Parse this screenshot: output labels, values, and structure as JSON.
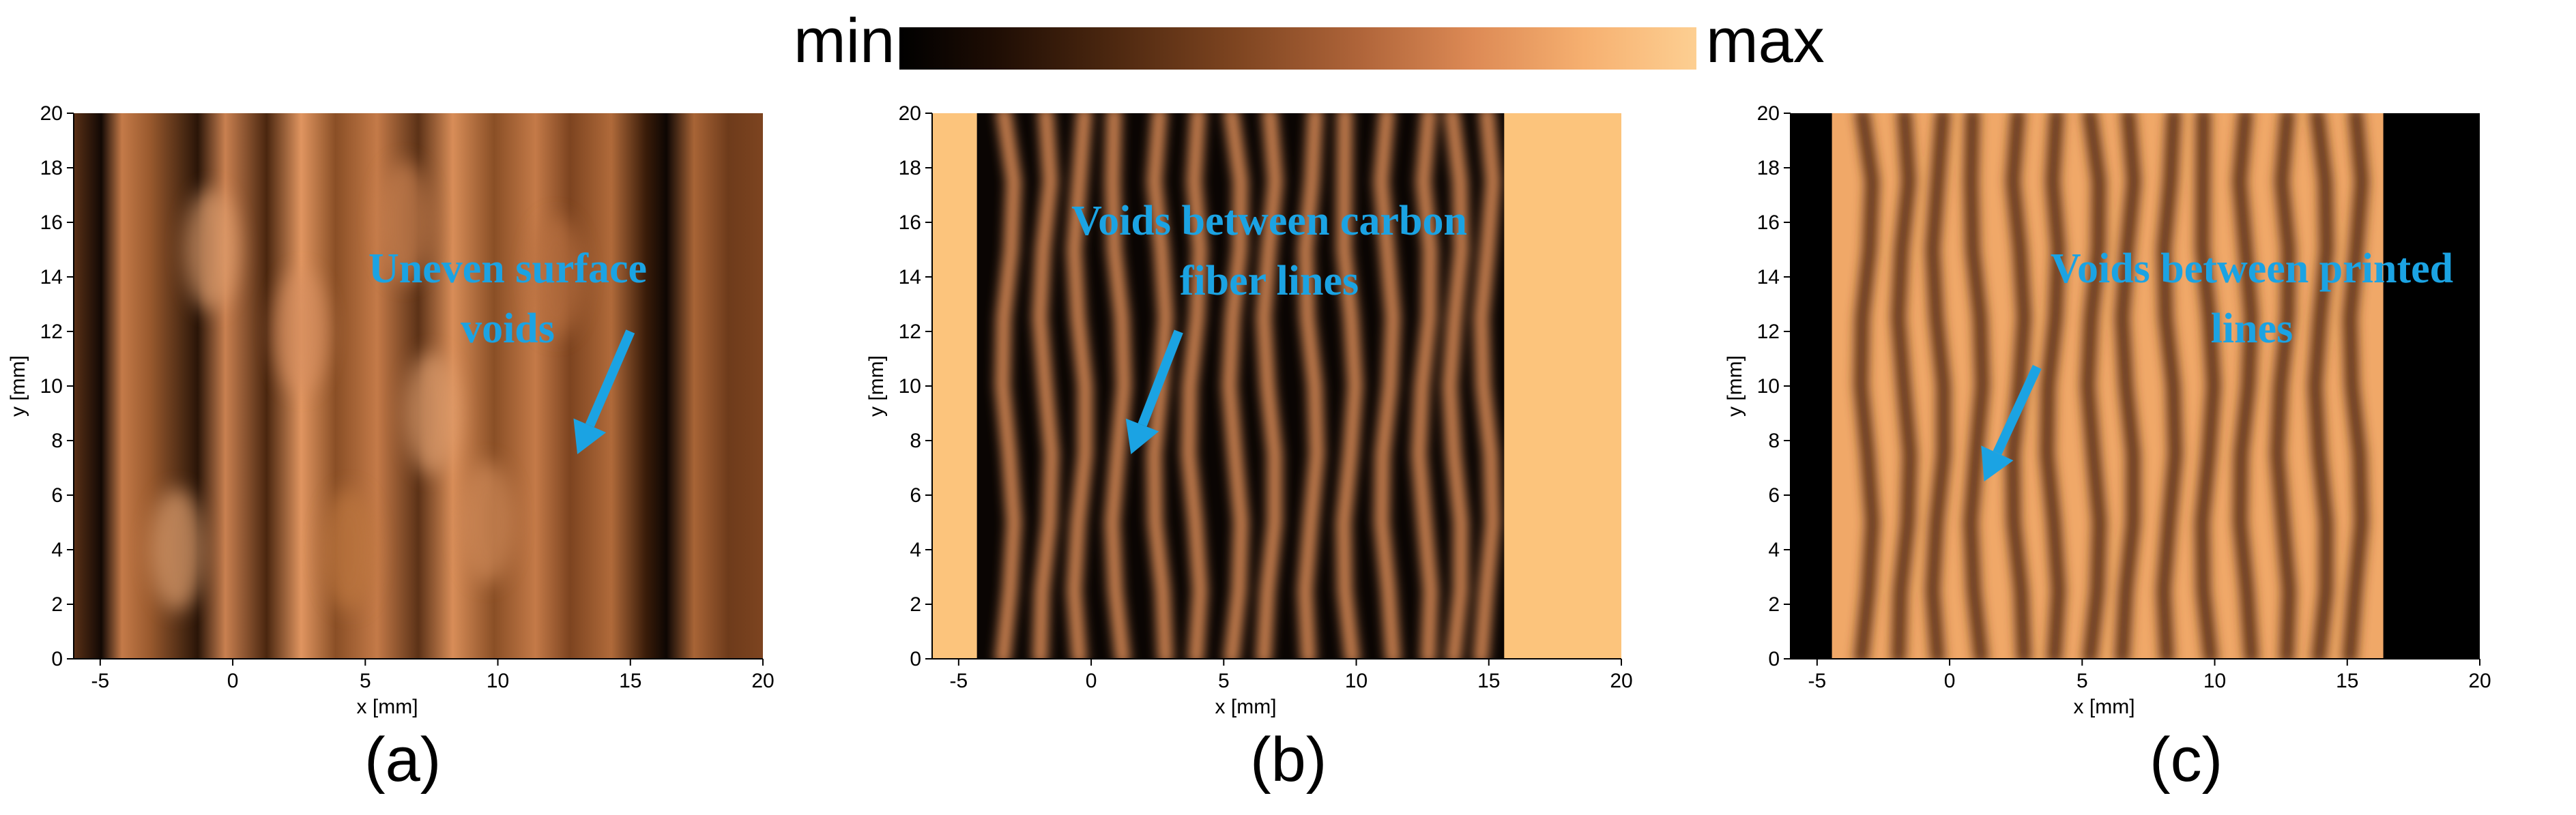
{
  "colorbar": {
    "min_label": "min",
    "max_label": "max",
    "colors": [
      "#000000",
      "#4a260f",
      "#b0653a",
      "#f6b070",
      "#fdcf92"
    ]
  },
  "accent_color": "#1ba3e3",
  "chart_data": [
    {
      "type": "heatmap",
      "panel": "(a)",
      "xlabel": "x [mm]",
      "ylabel": "y [mm]",
      "xlim": [
        -6,
        20
      ],
      "ylim": [
        0,
        20
      ],
      "xticks": [
        "-5",
        "0",
        "5",
        "10",
        "15",
        "20"
      ],
      "yticks": [
        "0",
        "2",
        "4",
        "6",
        "8",
        "10",
        "12",
        "14",
        "16",
        "18",
        "20"
      ],
      "annotation": {
        "line1": "Uneven surface",
        "line2": "voids"
      },
      "arrow": {
        "from": [
          15,
          12
        ],
        "to": [
          13,
          7.5
        ]
      }
    },
    {
      "type": "heatmap",
      "panel": "(b)",
      "xlabel": "x [mm]",
      "ylabel": "y [mm]",
      "xlim": [
        -6,
        20
      ],
      "ylim": [
        0,
        20
      ],
      "xticks": [
        "-5",
        "0",
        "5",
        "10",
        "15",
        "20"
      ],
      "yticks": [
        "0",
        "2",
        "4",
        "6",
        "8",
        "10",
        "12",
        "14",
        "16",
        "18",
        "20"
      ],
      "annotation": {
        "line1": "Voids between carbon",
        "line2": "fiber lines"
      },
      "arrow": {
        "from": [
          3.3,
          12
        ],
        "to": [
          1.5,
          7.5
        ]
      }
    },
    {
      "type": "heatmap",
      "panel": "(c)",
      "xlabel": "x [mm]",
      "ylabel": "y [mm]",
      "xlim": [
        -6,
        20
      ],
      "ylim": [
        0,
        20
      ],
      "xticks": [
        "-5",
        "0",
        "5",
        "10",
        "15",
        "20"
      ],
      "yticks": [
        "0",
        "2",
        "4",
        "6",
        "8",
        "10",
        "12",
        "14",
        "16",
        "18",
        "20"
      ],
      "annotation": {
        "line1": "Voids between printed",
        "line2": "lines"
      },
      "arrow": {
        "from": [
          3.3,
          10.7
        ],
        "to": [
          1.3,
          6.5
        ]
      }
    }
  ]
}
